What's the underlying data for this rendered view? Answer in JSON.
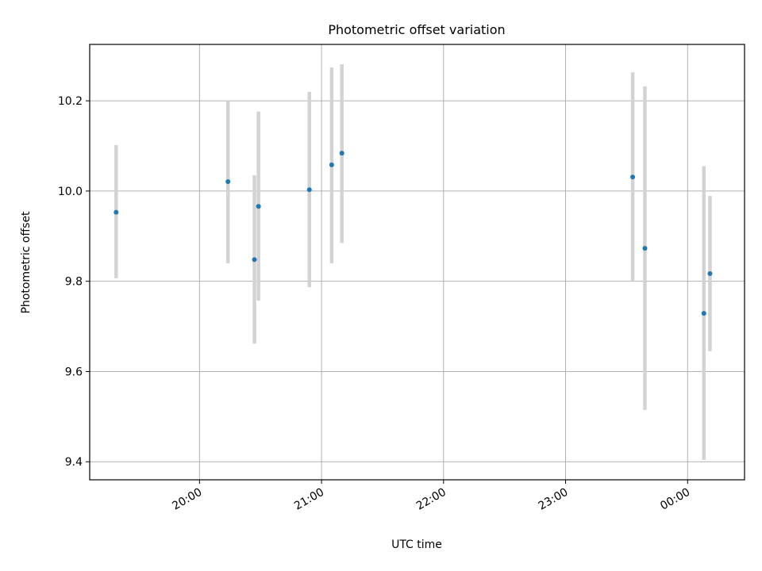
{
  "chart_data": {
    "type": "scatter",
    "title": "Photometric offset variation",
    "xlabel": "UTC time",
    "ylabel": "Photometric offset",
    "x_type": "time",
    "x_ticks": [
      "20:00",
      "21:00",
      "22:00",
      "23:00",
      "00:00"
    ],
    "y_ticks": [
      "9.4",
      "9.6",
      "9.8",
      "10.0",
      "10.2"
    ],
    "xlim": [
      "19:06",
      "00:28"
    ],
    "ylim": [
      9.36,
      10.325
    ],
    "grid": true,
    "series": [
      {
        "marker_color": "#1f77b4",
        "errorbar_color": "#d3d3d3",
        "points": [
          {
            "x": "19:19",
            "y": 9.953,
            "ylo": 9.807,
            "yhi": 10.102
          },
          {
            "x": "20:14",
            "y": 10.021,
            "ylo": 9.84,
            "yhi": 10.2
          },
          {
            "x": "20:27",
            "y": 9.848,
            "ylo": 9.662,
            "yhi": 10.035
          },
          {
            "x": "20:29",
            "y": 9.966,
            "ylo": 9.757,
            "yhi": 10.176
          },
          {
            "x": "20:54",
            "y": 10.003,
            "ylo": 9.787,
            "yhi": 10.22
          },
          {
            "x": "21:05",
            "y": 10.058,
            "ylo": 9.84,
            "yhi": 10.274
          },
          {
            "x": "21:10",
            "y": 10.084,
            "ylo": 9.885,
            "yhi": 10.281
          },
          {
            "x": "23:33",
            "y": 10.031,
            "ylo": 9.8,
            "yhi": 10.263
          },
          {
            "x": "23:39",
            "y": 9.873,
            "ylo": 9.515,
            "yhi": 10.232
          },
          {
            "x": "00:08",
            "y": 9.729,
            "ylo": 9.404,
            "yhi": 10.055
          },
          {
            "x": "00:11",
            "y": 9.817,
            "ylo": 9.645,
            "yhi": 9.989
          }
        ]
      }
    ]
  }
}
